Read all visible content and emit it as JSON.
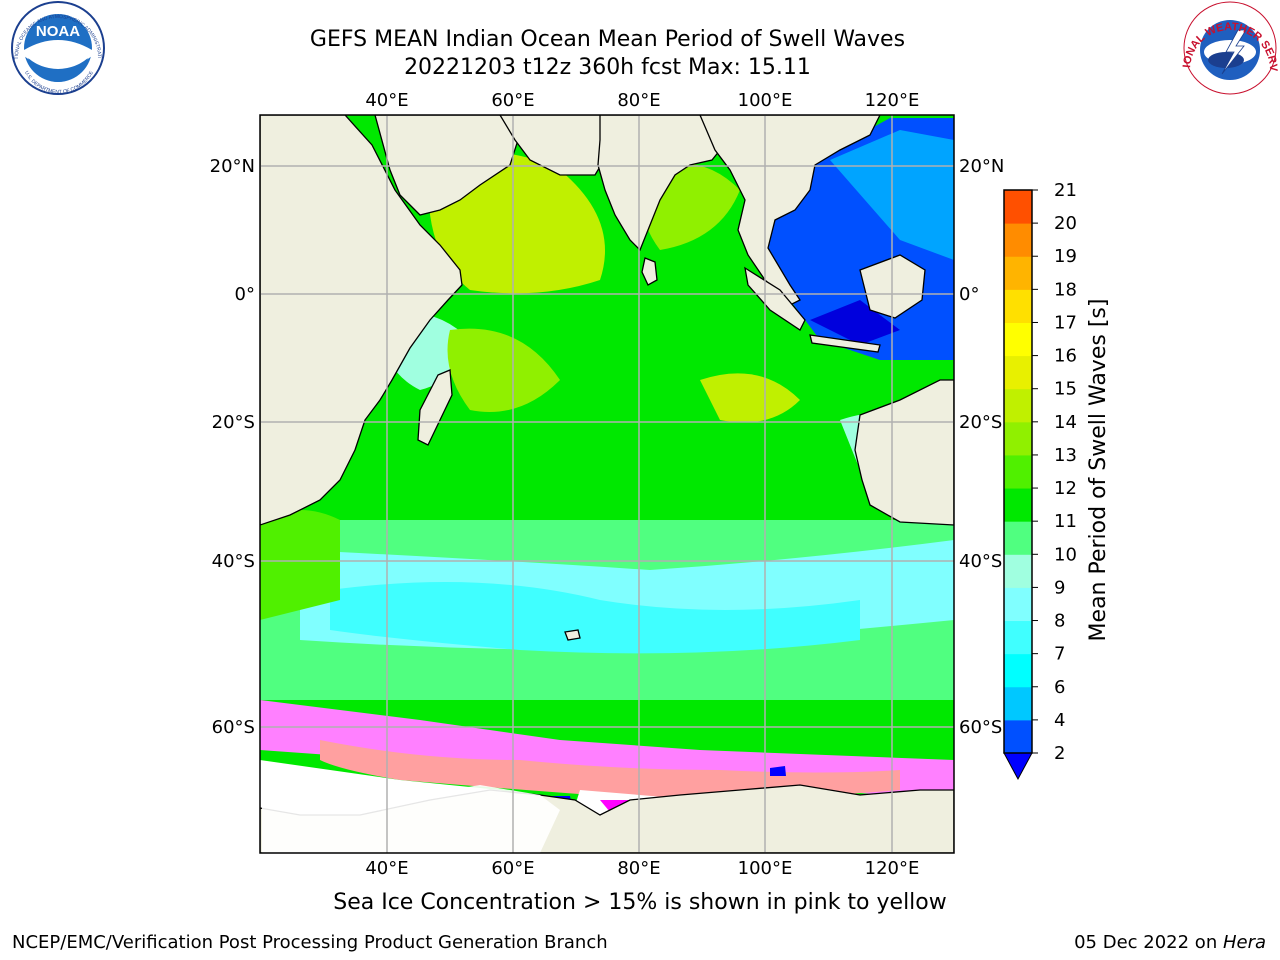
{
  "title": {
    "line1": "GEFS MEAN Indian Ocean Mean Period of Swell Waves",
    "line2": "20221203 t12z 360h fcst   Max: 15.11"
  },
  "logos": {
    "left": "NOAA",
    "left_ring_top": "NATIONAL OCEANIC AND ATMOSPHERIC ADMINISTRATION",
    "left_ring_bottom": "U.S. DEPARTMENT OF COMMERCE",
    "right_ring": "NATIONAL WEATHER SERVICE"
  },
  "axes": {
    "lon_labels": [
      "40°E",
      "60°E",
      "80°E",
      "100°E",
      "120°E"
    ],
    "lat_labels": [
      "20°N",
      "0°",
      "20°S",
      "40°S",
      "60°S"
    ]
  },
  "colorbar": {
    "label": "Mean Period of Swell Waves [s]",
    "ticks": [
      "2",
      "4",
      "6",
      "7",
      "8",
      "9",
      "10",
      "11",
      "12",
      "13",
      "14",
      "15",
      "16",
      "17",
      "18",
      "19",
      "20",
      "21"
    ],
    "colors": [
      "#0050ff",
      "#00c8ff",
      "#00ffff",
      "#40ffff",
      "#80ffff",
      "#a0ffe0",
      "#50ff80",
      "#00e800",
      "#50f000",
      "#90f000",
      "#c0f000",
      "#e8f000",
      "#ffff00",
      "#ffe000",
      "#ffb400",
      "#ff8c00",
      "#ff5000",
      "#ff2000",
      "#ff0000"
    ],
    "arrow_color": "#0000ff"
  },
  "caption": "Sea Ice Concentration > 15% is shown in pink to yellow",
  "footer": {
    "left": "NCEP/EMC/Verification Post Processing Product Generation Branch",
    "right_date": "05 Dec 2022 on ",
    "right_host": "Hera"
  }
}
